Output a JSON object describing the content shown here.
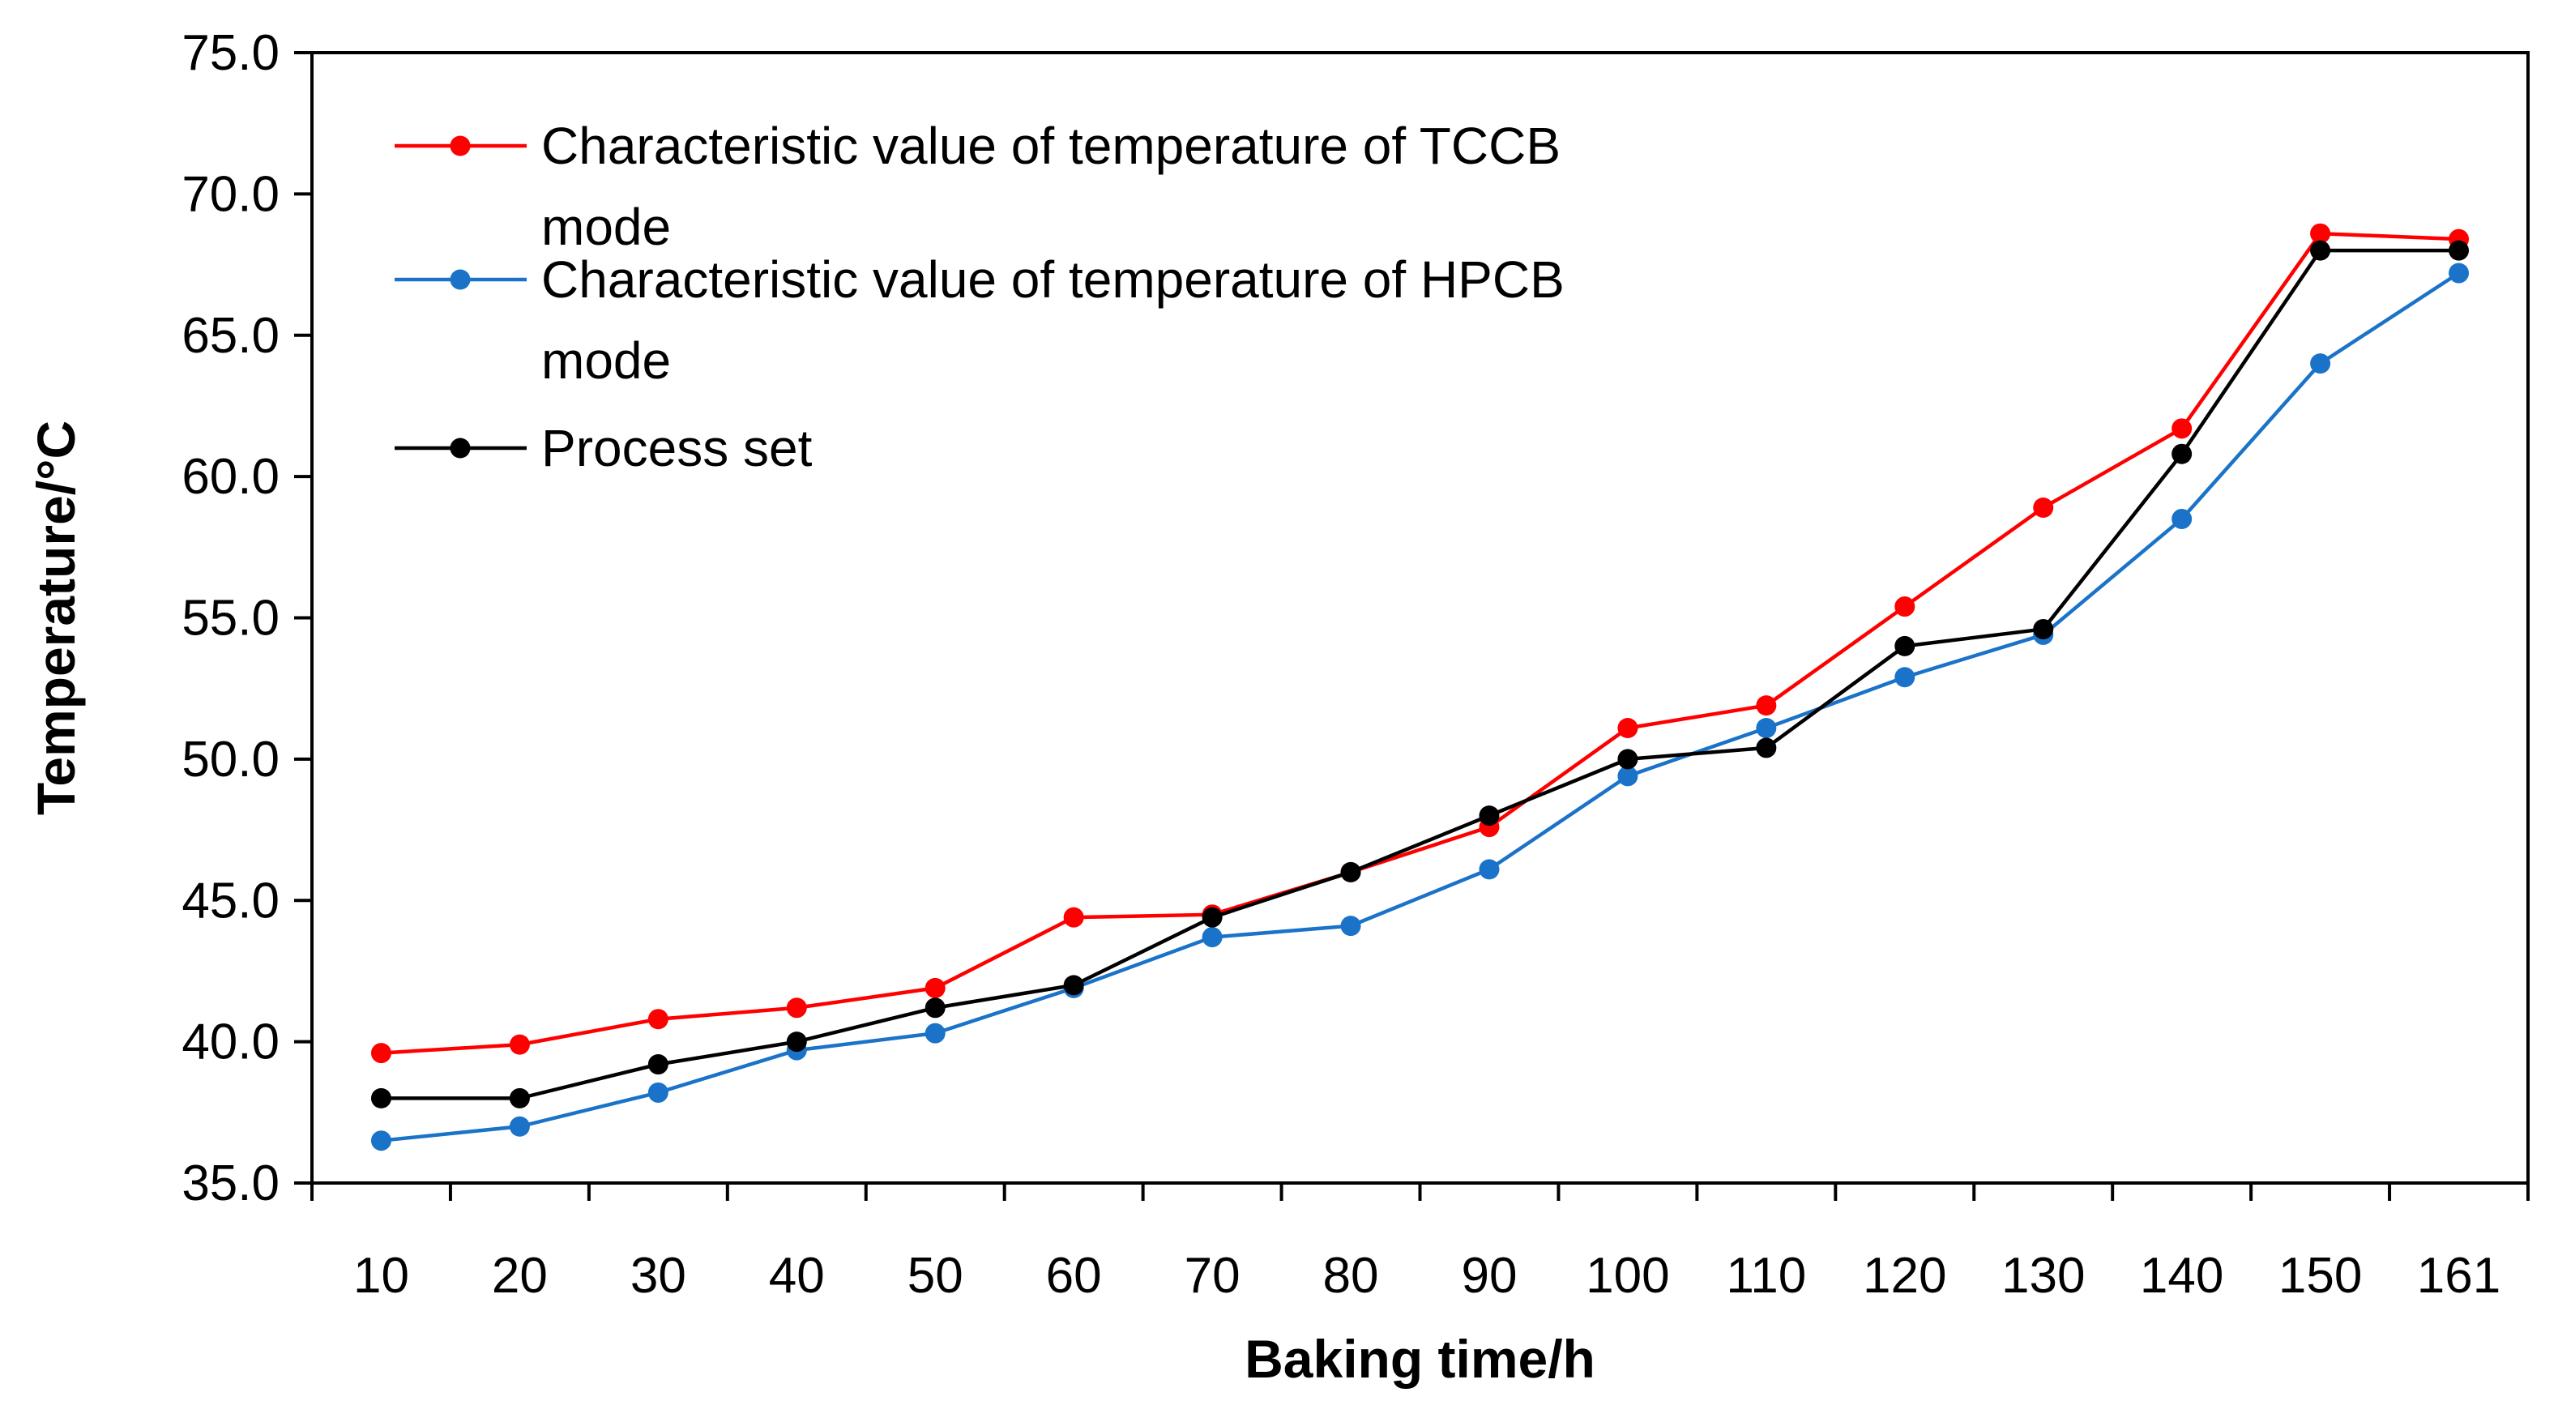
{
  "chart_data": {
    "type": "line",
    "title": "",
    "xlabel": "Baking time/h",
    "ylabel": "Temperature/°C",
    "categories": [
      "10",
      "20",
      "30",
      "40",
      "50",
      "60",
      "70",
      "80",
      "90",
      "100",
      "110",
      "120",
      "130",
      "140",
      "150",
      "161"
    ],
    "ylim": [
      35.0,
      75.0
    ],
    "ytick_step": 5.0,
    "ytick_labels": [
      "35.0",
      "40.0",
      "45.0",
      "50.0",
      "55.0",
      "60.0",
      "65.0",
      "70.0",
      "75.0"
    ],
    "grid": false,
    "legend_position": "top-left",
    "series": [
      {
        "name": "Characteristic value of temperature of TCCB mode",
        "legend_lines": [
          "Characteristic value of temperature of TCCB",
          "mode"
        ],
        "color": "#ff0000",
        "values": [
          39.6,
          39.9,
          40.8,
          41.2,
          41.9,
          44.4,
          44.5,
          46.0,
          47.6,
          51.1,
          51.9,
          55.4,
          58.9,
          61.7,
          68.6,
          68.4
        ]
      },
      {
        "name": "Characteristic value of temperature of HPCB mode",
        "legend_lines": [
          "Characteristic value of temperature of HPCB",
          "mode"
        ],
        "color": "#1a73c8",
        "values": [
          36.5,
          37.0,
          38.2,
          39.7,
          40.3,
          41.9,
          43.7,
          44.1,
          46.1,
          49.4,
          51.1,
          52.9,
          54.4,
          58.5,
          64.0,
          67.2
        ]
      },
      {
        "name": "Process set",
        "legend_lines": [
          "Process set"
        ],
        "color": "#000000",
        "values": [
          38.0,
          38.0,
          39.2,
          40.0,
          41.2,
          42.0,
          44.4,
          46.0,
          48.0,
          50.0,
          50.4,
          54.0,
          54.6,
          60.8,
          68.0,
          68.0
        ]
      }
    ]
  }
}
